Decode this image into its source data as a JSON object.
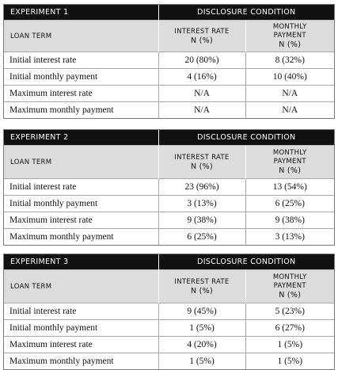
{
  "experiments": [
    {
      "title": "EXPERIMENT 1",
      "condition_header": "DISCLOSURE CONDITION",
      "col_loan_term": "LOAN TERM",
      "col_interest_rate_line1": "INTEREST RATE",
      "col_interest_rate_line2": "N (%)",
      "col_monthly_line1": "MONTHLY",
      "col_monthly_line2": "PAYMENT",
      "col_monthly_line3": "N (%)",
      "rows": [
        {
          "term": "Initial interest rate",
          "interest_rate": "20 (80%)",
          "monthly_payment": "8 (32%)"
        },
        {
          "term": "Initial monthly payment",
          "interest_rate": "4 (16%)",
          "monthly_payment": "10 (40%)"
        },
        {
          "term": "Maximum interest rate",
          "interest_rate": "N/A",
          "monthly_payment": "N/A"
        },
        {
          "term": "Maximum monthly payment",
          "interest_rate": "N/A",
          "monthly_payment": "N/A"
        }
      ]
    },
    {
      "title": "EXPERIMENT 2",
      "condition_header": "DISCLOSURE CONDITION",
      "col_loan_term": "LOAN TERM",
      "col_interest_rate_line1": "INTEREST RATE",
      "col_interest_rate_line2": "N (%)",
      "col_monthly_line1": "MONTHLY",
      "col_monthly_line2": "PAYMENT",
      "col_monthly_line3": "N (%)",
      "rows": [
        {
          "term": "Initial interest rate",
          "interest_rate": "23 (96%)",
          "monthly_payment": "13 (54%)"
        },
        {
          "term": "Initial monthly payment",
          "interest_rate": "3 (13%)",
          "monthly_payment": "6 (25%)"
        },
        {
          "term": "Maximum interest rate",
          "interest_rate": "9 (38%)",
          "monthly_payment": "9 (38%)"
        },
        {
          "term": "Maximum monthly payment",
          "interest_rate": "6 (25%)",
          "monthly_payment": "3 (13%)"
        }
      ]
    },
    {
      "title": "EXPERIMENT 3",
      "condition_header": "DISCLOSURE CONDITION",
      "col_loan_term": "LOAN TERM",
      "col_interest_rate_line1": "INTEREST RATE",
      "col_interest_rate_line2": "N (%)",
      "col_monthly_line1": "MONTHLY",
      "col_monthly_line2": "PAYMENT",
      "col_monthly_line3": "N (%)",
      "rows": [
        {
          "term": "Initial interest rate",
          "interest_rate": "9 (45%)",
          "monthly_payment": "5 (23%)"
        },
        {
          "term": "Initial monthly payment",
          "interest_rate": "1 (5%)",
          "monthly_payment": "6 (27%)"
        },
        {
          "term": "Maximum interest rate",
          "interest_rate": "4 (20%)",
          "monthly_payment": "1 (5%)"
        },
        {
          "term": "Maximum monthly payment",
          "interest_rate": "1 (5%)",
          "monthly_payment": "1 (5%)"
        }
      ]
    }
  ]
}
